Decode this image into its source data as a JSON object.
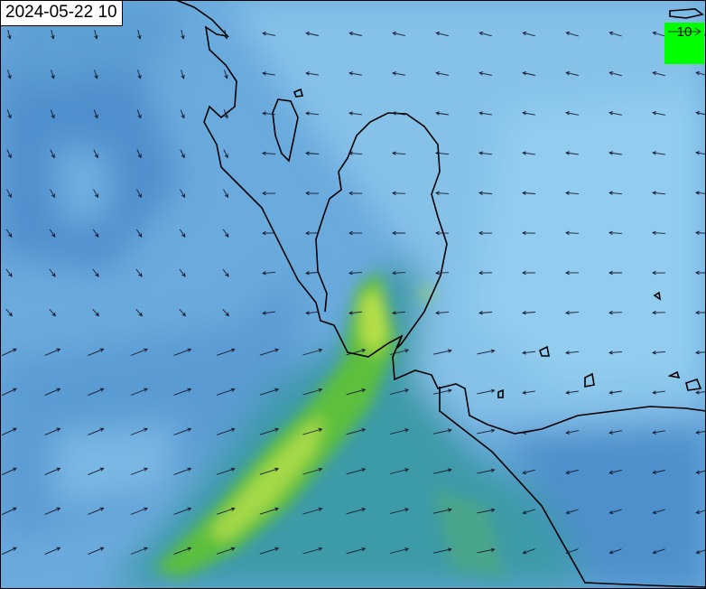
{
  "timestamp": "2024-05-22 10",
  "legend": {
    "reference_value": "10",
    "background_color": "#00ff00",
    "arrow_icon": "reference-wind-arrow"
  },
  "colors": {
    "low": "#8ec8ea",
    "mid": "#5b9fd8",
    "high_green": "#52c234",
    "peak_yellow": "#b8e04a",
    "coastline": "#000000"
  }
}
